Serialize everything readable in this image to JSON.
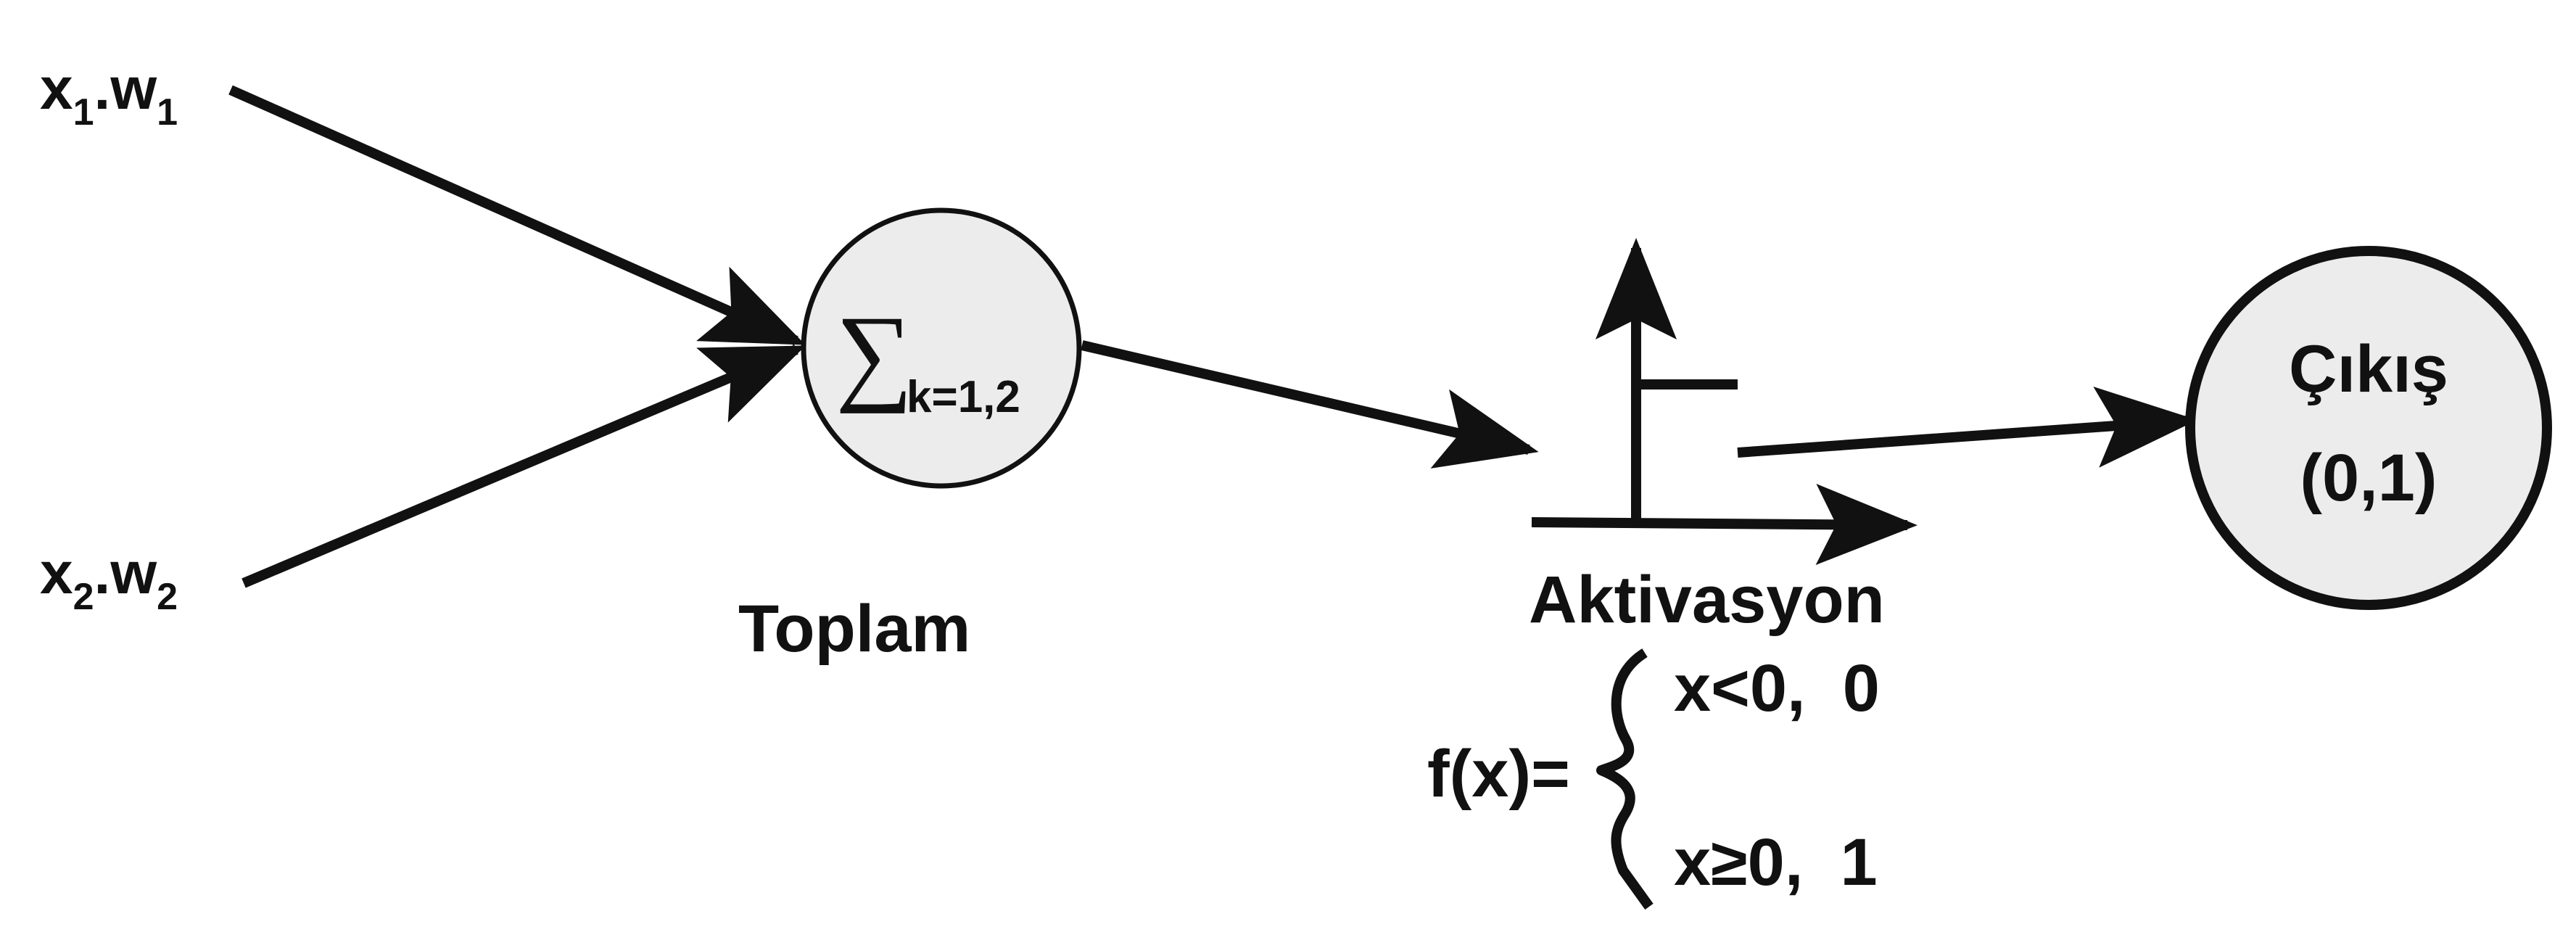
{
  "colors": {
    "stroke": "#111111",
    "node_fill": "#ececec",
    "background": "#ffffff"
  },
  "inputs": [
    {
      "x": "x",
      "x_sub": "1",
      "dot": ".",
      "w": "w",
      "w_sub": "1"
    },
    {
      "x": "x",
      "x_sub": "2",
      "dot": ".",
      "w": "w",
      "w_sub": "2"
    }
  ],
  "sum_node": {
    "symbol": "∑",
    "subscript": "k=1,2",
    "label": "Toplam"
  },
  "activation": {
    "label": "Aktivasyon",
    "function_lhs": "f(x)=",
    "brace": "{",
    "case1": "x<0,  0",
    "case2": "x≥0,  1"
  },
  "output_node": {
    "line1": "Çıkış",
    "line2": "(0,1)"
  }
}
